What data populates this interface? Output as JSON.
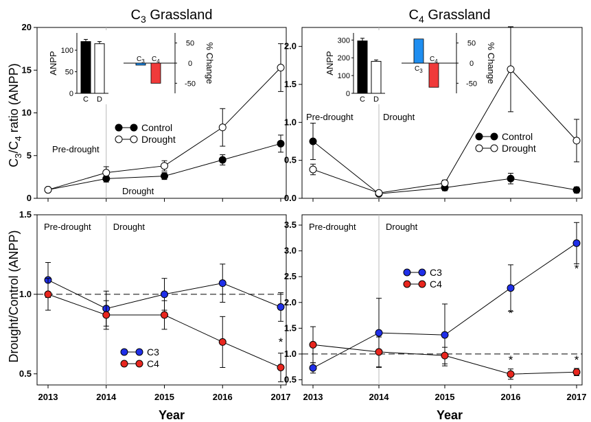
{
  "colors": {
    "c3": "#1f2fe8",
    "c4": "#e8261e",
    "control": "#000000",
    "drought": "#ffffff",
    "c3_bar": "#1f8ef0",
    "c4_bar": "#f03a3a",
    "axis": "#000000",
    "ref_line": "#000000",
    "divider": "#b8b8b8"
  },
  "figure": {
    "xlabel": "Year",
    "ylabel_top_main": "C",
    "ylabel_top_sub3": "3",
    "ylabel_top_slash": "/C",
    "ylabel_top_sub4": "4",
    "ylabel_top_rest": " ratio (ANPP)",
    "ylabel_bottom": "Drought/Control (ANPP)",
    "title_c3_main": "C",
    "title_c3_sub": "3",
    "title_c3_rest": " Grassland",
    "title_c4_main": "C",
    "title_c4_sub": "4",
    "title_c4_rest": " Grassland"
  },
  "chart_data": [
    {
      "id": "c3_ratio",
      "type": "line",
      "panel": "C3 Grassland, top",
      "x": [
        2013,
        2014,
        2015,
        2016,
        2017
      ],
      "xlim": [
        2013,
        2017
      ],
      "ylim": [
        0,
        20
      ],
      "yticks": [
        0,
        5,
        10,
        15,
        20
      ],
      "series": [
        {
          "name": "Control",
          "key": "control",
          "values": [
            1.0,
            2.3,
            2.6,
            4.5,
            6.4
          ],
          "err": [
            0.1,
            0.4,
            0.4,
            0.6,
            1.0
          ]
        },
        {
          "name": "Drought",
          "key": "drought",
          "values": [
            1.0,
            3.0,
            3.8,
            8.3,
            15.3
          ],
          "err": [
            0.1,
            0.7,
            0.6,
            2.2,
            2.8
          ]
        }
      ],
      "legend": "middle-left",
      "annotations": {
        "pre": "Pre-drought",
        "drought": "Drought"
      },
      "inset": {
        "ylabel_left": "ANPP",
        "ylabel_right": "% Change",
        "bars_left": {
          "categories": [
            "C",
            "D"
          ],
          "values": [
            120,
            115
          ],
          "err": [
            5,
            5
          ],
          "ylim": [
            0,
            140
          ],
          "yticks": [
            0,
            50,
            100
          ]
        },
        "bars_right": {
          "categories": [
            "C3",
            "C4"
          ],
          "values": [
            -5,
            -50
          ],
          "ylim": [
            -75,
            75
          ],
          "yticks": [
            -50,
            0,
            50
          ]
        }
      }
    },
    {
      "id": "c4_ratio",
      "type": "line",
      "panel": "C4 Grassland, top",
      "x": [
        2013,
        2014,
        2015,
        2016,
        2017
      ],
      "xlim": [
        2013,
        2017
      ],
      "ylim": [
        0,
        2.25
      ],
      "yticks": [
        0.0,
        0.5,
        1.0,
        1.5,
        2.0
      ],
      "series": [
        {
          "name": "Control",
          "key": "control",
          "values": [
            0.75,
            0.06,
            0.14,
            0.26,
            0.11
          ],
          "err": [
            0.24,
            0.02,
            0.04,
            0.07,
            0.04
          ]
        },
        {
          "name": "Drought",
          "key": "drought",
          "values": [
            0.38,
            0.07,
            0.2,
            1.7,
            0.76
          ],
          "err": [
            0.07,
            0.03,
            0.04,
            0.56,
            0.28
          ]
        }
      ],
      "legend": "middle-right",
      "annotations": {
        "pre": "Pre-drought",
        "drought": "Drought"
      },
      "inset": {
        "ylabel_left": "ANPP",
        "ylabel_right": "% Change",
        "bars_left": {
          "categories": [
            "C",
            "D"
          ],
          "values": [
            295,
            180
          ],
          "err": [
            15,
            8
          ],
          "ylim": [
            0,
            340
          ],
          "yticks": [
            0,
            100,
            200,
            300
          ]
        },
        "bars_right": {
          "categories": [
            "C3",
            "C4"
          ],
          "values": [
            60,
            -60
          ],
          "ylim": [
            -75,
            75
          ],
          "yticks": [
            -50,
            0,
            50
          ]
        }
      }
    },
    {
      "id": "c3_ratio_dc",
      "type": "line",
      "panel": "C3 Grassland, bottom",
      "x": [
        2013,
        2014,
        2015,
        2016,
        2017
      ],
      "xlim": [
        2013,
        2017
      ],
      "ylim": [
        0.43,
        1.5
      ],
      "yticks": [
        0.5,
        1.0,
        1.5
      ],
      "ref_line": 1.0,
      "series": [
        {
          "name": "C3",
          "key": "c3",
          "values": [
            1.09,
            0.91,
            1.0,
            1.07,
            0.92
          ],
          "err": [
            0.11,
            0.11,
            0.1,
            0.12,
            0.09
          ]
        },
        {
          "name": "C4",
          "key": "c4",
          "values": [
            1.0,
            0.87,
            0.87,
            0.7,
            0.54
          ],
          "err": [
            0.1,
            0.09,
            0.09,
            0.16,
            0.09
          ]
        }
      ],
      "legend": "bottom-left",
      "significance": [
        {
          "x": 2017,
          "y": 0.675,
          "label": "*"
        }
      ],
      "annotations": {
        "pre": "Pre-drought",
        "drought": "Drought"
      }
    },
    {
      "id": "c4_ratio_dc",
      "type": "line",
      "panel": "C4 Grassland, bottom",
      "x": [
        2013,
        2014,
        2015,
        2016,
        2017
      ],
      "xlim": [
        2013,
        2017
      ],
      "ylim": [
        0.4,
        3.7
      ],
      "yticks": [
        0.5,
        1.0,
        1.5,
        2.0,
        2.5,
        3.0,
        3.5
      ],
      "ref_line": 1.0,
      "series": [
        {
          "name": "C3",
          "key": "c3",
          "values": [
            0.73,
            1.41,
            1.37,
            2.28,
            3.15
          ],
          "err": [
            0.1,
            0.67,
            0.6,
            0.45,
            0.4
          ]
        },
        {
          "name": "C4",
          "key": "c4",
          "values": [
            1.18,
            1.04,
            0.97,
            0.61,
            0.65
          ],
          "err": [
            0.35,
            0.29,
            0.16,
            0.1,
            0.07
          ]
        }
      ],
      "legend": "middle-left",
      "significance": [
        {
          "x": 2016,
          "y": 1.72,
          "label": "*"
        },
        {
          "x": 2017,
          "y": 2.58,
          "label": "*"
        },
        {
          "x": 2016,
          "y": 0.81,
          "label": "*"
        },
        {
          "x": 2017,
          "y": 0.81,
          "label": "*"
        }
      ],
      "annotations": {
        "pre": "Pre-drought",
        "drought": "Drought"
      }
    }
  ]
}
